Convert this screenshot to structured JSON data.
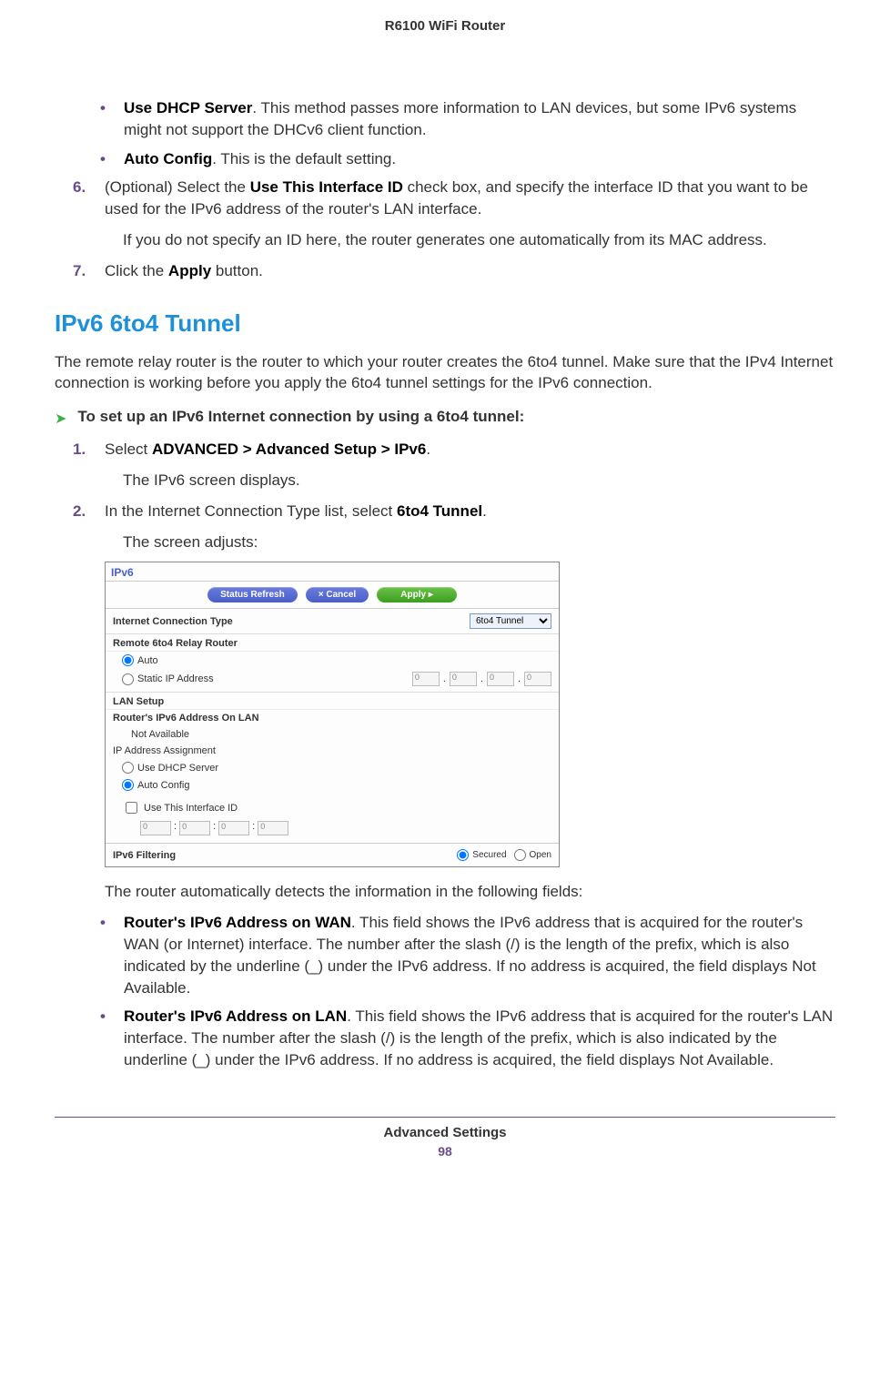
{
  "header": {
    "product": "R6100 WiFi Router"
  },
  "top_bullets": [
    {
      "bold": "Use DHCP Server",
      "rest": ". This method passes more information to LAN devices, but some IPv6 systems might not support the DHCv6 client function."
    },
    {
      "bold": "Auto Config",
      "rest": ". This is the default setting."
    }
  ],
  "steps_top": [
    {
      "num": "6.",
      "html": "(Optional) Select the <b>Use This Interface ID</b> check box, and specify the interface ID that you want to be used for the IPv6 address of the router's LAN interface.",
      "after": "If you do not specify an ID here, the router generates one automatically from its MAC address."
    },
    {
      "num": "7.",
      "html": "Click the <b>Apply</b> button."
    }
  ],
  "section": {
    "title": "IPv6 6to4 Tunnel",
    "intro": "The remote relay router is the router to which your router creates the 6to4 tunnel. Make sure that the IPv4 Internet connection is working before you apply the 6to4 tunnel settings for the IPv6 connection.",
    "proc_head": "To set up an IPv6 Internet connection by using a 6to4 tunnel:"
  },
  "steps_proc": [
    {
      "num": "1.",
      "html": "Select <b>ADVANCED > Advanced Setup > IPv6</b>.",
      "after": "The IPv6 screen displays."
    },
    {
      "num": "2.",
      "html": "In the Internet Connection Type list, select <b>6to4 Tunnel</b>.",
      "after": "The screen adjusts:"
    }
  ],
  "screenshot": {
    "window_title": "IPv6",
    "btn_refresh": "Status Refresh",
    "btn_cancel": "×    Cancel",
    "btn_apply": "Apply    ▸",
    "conn_type_label": "Internet Connection Type",
    "conn_type_value": "6to4 Tunnel",
    "remote_section": "Remote 6to4 Relay Router",
    "opt_auto": "Auto",
    "opt_static": "Static IP Address",
    "ip_parts": [
      "0",
      "0",
      "0",
      "0"
    ],
    "lan_setup": "LAN Setup",
    "lan_addr_label": "Router's IPv6 Address On LAN",
    "lan_addr_value": "Not Available",
    "ip_assign": "IP Address Assignment",
    "opt_dhcp": "Use DHCP Server",
    "opt_autoconfig": "Auto Config",
    "use_iface": "Use This Interface ID",
    "hex_parts": [
      "0",
      "0",
      "0",
      "0"
    ],
    "filter_label": "IPv6 Filtering",
    "filter_secured": "Secured",
    "filter_open": "Open"
  },
  "after_shot": "The router automatically detects the information in the following fields:",
  "detect_bullets": [
    {
      "bold": "Router's IPv6 Address on WAN",
      "rest": ". This field shows the IPv6 address that is acquired for the router's WAN (or Internet) interface. The number after the slash (/) is the length of the prefix, which is also indicated by the underline (_) under the IPv6 address. If no address is acquired, the field displays Not Available."
    },
    {
      "bold": "Router's IPv6 Address on LAN",
      "rest": ". This field shows the IPv6 address that is acquired for the router's LAN interface. The number after the slash (/) is the length of the prefix, which is also indicated by the underline (_) under the IPv6 address. If no address is acquired, the field displays Not Available."
    }
  ],
  "footer": {
    "section": "Advanced Settings",
    "page": "98"
  }
}
